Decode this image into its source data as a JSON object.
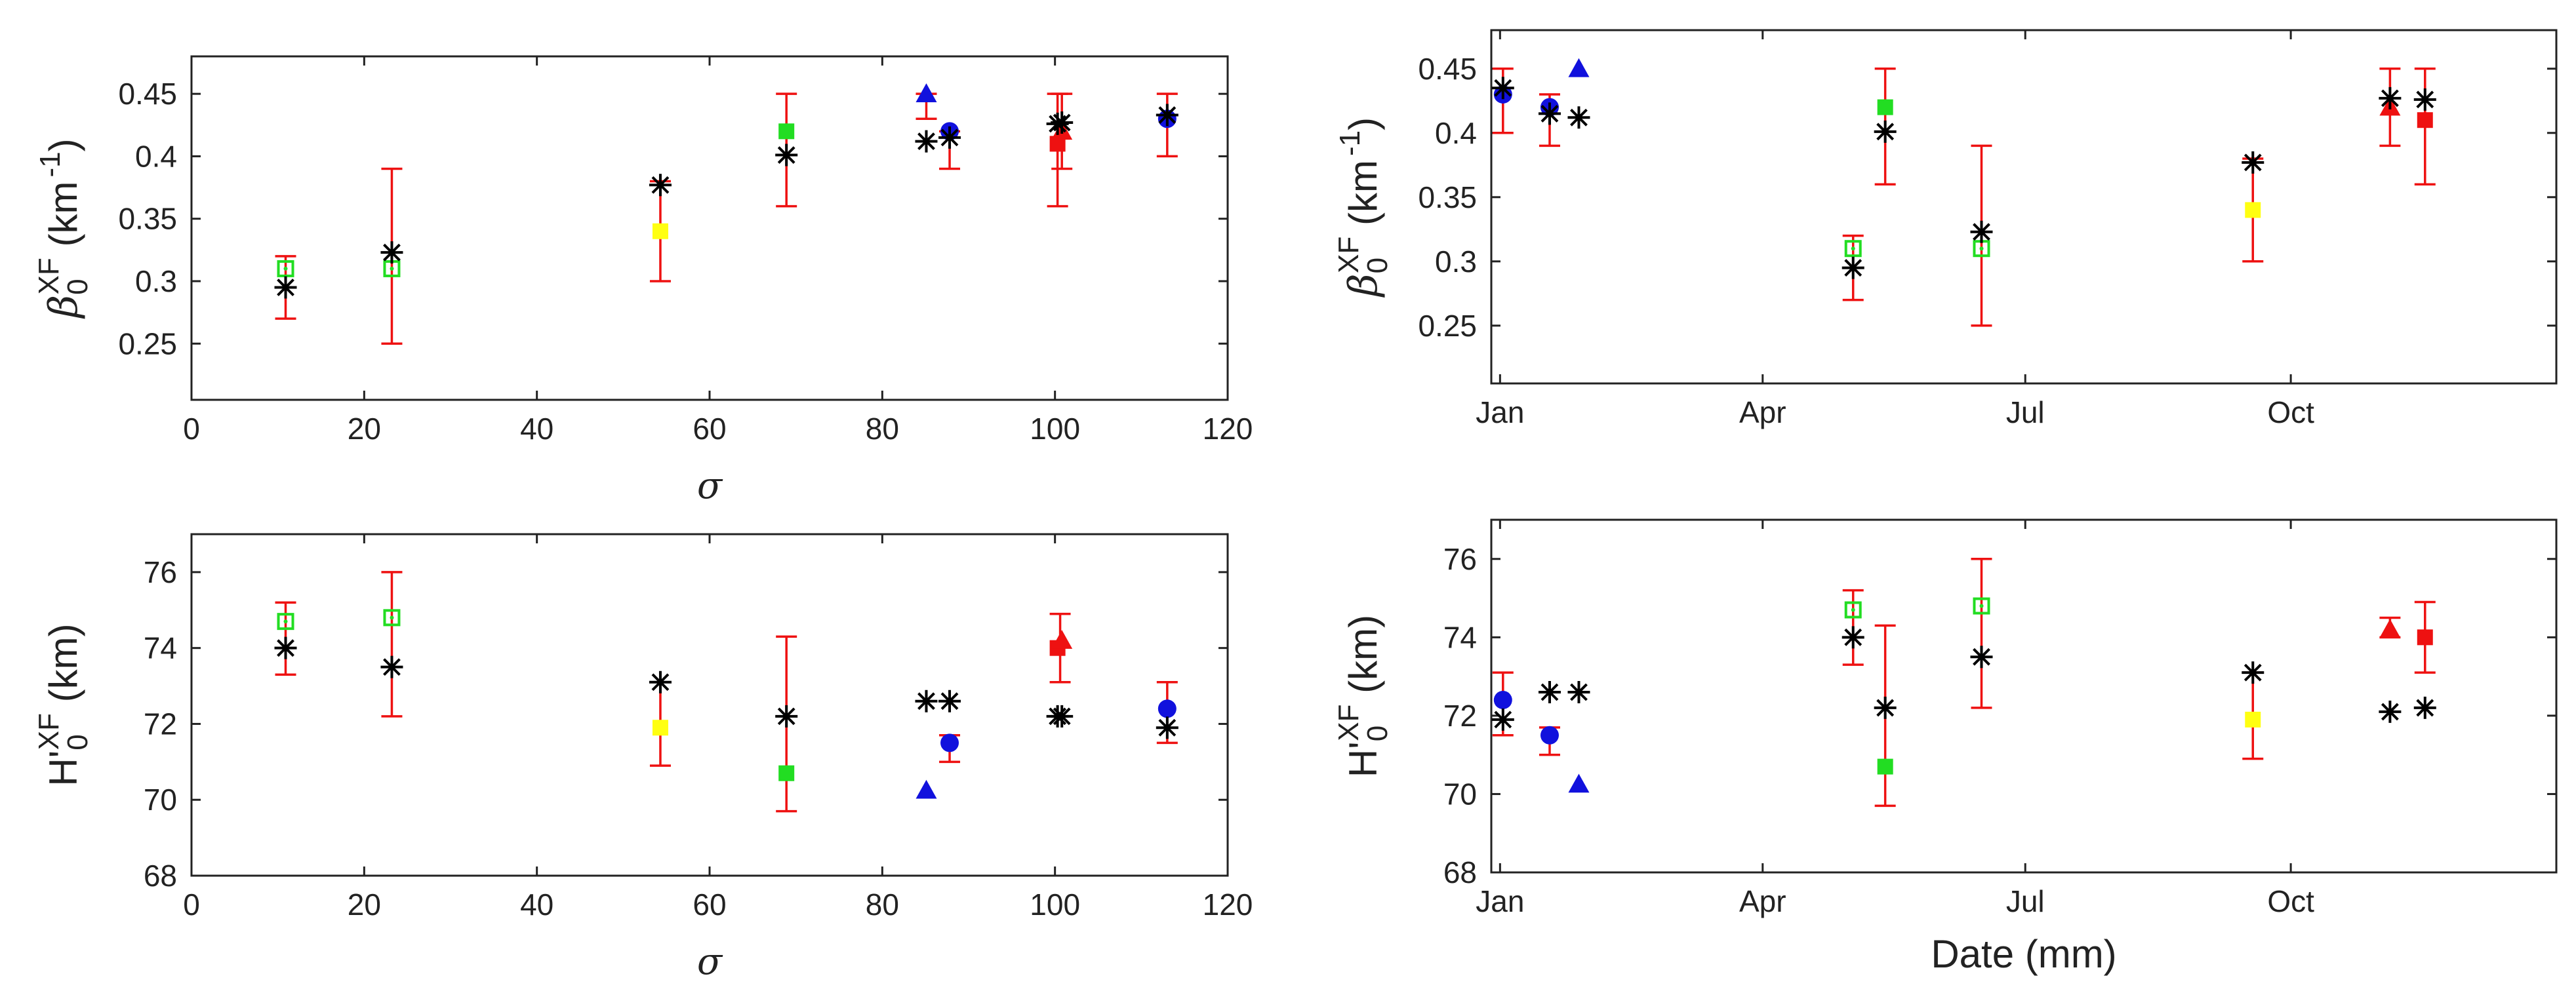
{
  "colors": {
    "red": "#ee1111",
    "green": "#22dd22",
    "yellow": "#ffff11",
    "blue": "#1111dd",
    "black": "#000000"
  },
  "chart_data": [
    {
      "type": "scatter",
      "xlabel": "σ",
      "ylabel": {
        "main": "β",
        "sub": "0",
        "sup": "XF",
        "unit": "(km",
        "unit_sup": "-1",
        "unit_close": ")"
      },
      "xlim": [
        0,
        120
      ],
      "ylim": [
        0.205,
        0.48
      ],
      "xticks": [
        0,
        20,
        40,
        60,
        80,
        100,
        120
      ],
      "yticks": [
        0.25,
        0.3,
        0.35,
        0.4,
        0.45
      ],
      "errorbars": [
        {
          "x": 10.9,
          "y": 0.31,
          "lo": 0.27,
          "hi": 0.32
        },
        {
          "x": 23.2,
          "y": 0.31,
          "lo": 0.25,
          "hi": 0.39
        },
        {
          "x": 54.3,
          "y": 0.34,
          "lo": 0.3,
          "hi": 0.38
        },
        {
          "x": 68.9,
          "y": 0.42,
          "lo": 0.36,
          "hi": 0.45
        },
        {
          "x": 85.1,
          "y": 0.45,
          "lo": 0.43,
          "hi": 0.45
        },
        {
          "x": 87.8,
          "y": 0.42,
          "lo": 0.39,
          "hi": 0.42
        },
        {
          "x": 100.3,
          "y": 0.41,
          "lo": 0.36,
          "hi": 0.45
        },
        {
          "x": 100.8,
          "y": 0.42,
          "lo": 0.39,
          "hi": 0.45
        },
        {
          "x": 113.0,
          "y": 0.43,
          "lo": 0.4,
          "hi": 0.45
        }
      ],
      "markers": [
        {
          "x": 10.9,
          "y": 0.31,
          "shape": "square-open",
          "color": "green"
        },
        {
          "x": 23.2,
          "y": 0.31,
          "shape": "square-open",
          "color": "green"
        },
        {
          "x": 54.3,
          "y": 0.34,
          "shape": "square",
          "color": "yellow"
        },
        {
          "x": 68.9,
          "y": 0.42,
          "shape": "square",
          "color": "green"
        },
        {
          "x": 85.1,
          "y": 0.45,
          "shape": "triangle",
          "color": "blue"
        },
        {
          "x": 87.8,
          "y": 0.42,
          "shape": "circle",
          "color": "blue"
        },
        {
          "x": 100.3,
          "y": 0.41,
          "shape": "square",
          "color": "red"
        },
        {
          "x": 100.8,
          "y": 0.42,
          "shape": "triangle",
          "color": "red"
        },
        {
          "x": 113.0,
          "y": 0.43,
          "shape": "circle",
          "color": "blue"
        },
        {
          "x": 10.9,
          "y": 0.295,
          "shape": "asterisk",
          "color": "black"
        },
        {
          "x": 23.2,
          "y": 0.323,
          "shape": "asterisk",
          "color": "black"
        },
        {
          "x": 54.3,
          "y": 0.377,
          "shape": "asterisk",
          "color": "black"
        },
        {
          "x": 68.9,
          "y": 0.401,
          "shape": "asterisk",
          "color": "black"
        },
        {
          "x": 85.1,
          "y": 0.412,
          "shape": "asterisk",
          "color": "black"
        },
        {
          "x": 87.8,
          "y": 0.415,
          "shape": "asterisk",
          "color": "black"
        },
        {
          "x": 100.3,
          "y": 0.426,
          "shape": "asterisk",
          "color": "black"
        },
        {
          "x": 100.8,
          "y": 0.427,
          "shape": "asterisk",
          "color": "black"
        },
        {
          "x": 113.0,
          "y": 0.433,
          "shape": "asterisk",
          "color": "black"
        }
      ]
    },
    {
      "type": "scatter",
      "xlabel": "",
      "ylabel": {
        "main": "β",
        "sub": "0",
        "sup": "XF",
        "unit": "(km",
        "unit_sup": "-1",
        "unit_close": ")"
      },
      "xlim": [
        0,
        365
      ],
      "ylim": [
        0.205,
        0.48
      ],
      "xticks": [
        3,
        93,
        183,
        274
      ],
      "xticklabels": [
        "Jan",
        "Apr",
        "Jul",
        "Oct"
      ],
      "yticks": [
        0.25,
        0.3,
        0.35,
        0.4,
        0.45
      ],
      "errorbars": [
        {
          "x": 4,
          "y": 0.43,
          "lo": 0.4,
          "hi": 0.45
        },
        {
          "x": 20,
          "y": 0.42,
          "lo": 0.39,
          "hi": 0.43
        },
        {
          "x": 124,
          "y": 0.31,
          "lo": 0.27,
          "hi": 0.32
        },
        {
          "x": 135,
          "y": 0.42,
          "lo": 0.36,
          "hi": 0.45
        },
        {
          "x": 168,
          "y": 0.31,
          "lo": 0.25,
          "hi": 0.39
        },
        {
          "x": 261,
          "y": 0.34,
          "lo": 0.3,
          "hi": 0.38
        },
        {
          "x": 308,
          "y": 0.42,
          "lo": 0.39,
          "hi": 0.45
        },
        {
          "x": 320,
          "y": 0.41,
          "lo": 0.36,
          "hi": 0.45
        }
      ],
      "markers": [
        {
          "x": 4,
          "y": 0.43,
          "shape": "circle",
          "color": "blue"
        },
        {
          "x": 20,
          "y": 0.42,
          "shape": "circle",
          "color": "blue"
        },
        {
          "x": 30,
          "y": 0.45,
          "shape": "triangle",
          "color": "blue"
        },
        {
          "x": 124,
          "y": 0.31,
          "shape": "square-open",
          "color": "green"
        },
        {
          "x": 135,
          "y": 0.42,
          "shape": "square",
          "color": "green"
        },
        {
          "x": 168,
          "y": 0.31,
          "shape": "square-open",
          "color": "green"
        },
        {
          "x": 261,
          "y": 0.34,
          "shape": "square",
          "color": "yellow"
        },
        {
          "x": 308,
          "y": 0.42,
          "shape": "triangle",
          "color": "red"
        },
        {
          "x": 320,
          "y": 0.41,
          "shape": "square",
          "color": "red"
        },
        {
          "x": 4,
          "y": 0.435,
          "shape": "asterisk",
          "color": "black"
        },
        {
          "x": 20,
          "y": 0.415,
          "shape": "asterisk",
          "color": "black"
        },
        {
          "x": 30,
          "y": 0.412,
          "shape": "asterisk",
          "color": "black"
        },
        {
          "x": 124,
          "y": 0.295,
          "shape": "asterisk",
          "color": "black"
        },
        {
          "x": 135,
          "y": 0.401,
          "shape": "asterisk",
          "color": "black"
        },
        {
          "x": 168,
          "y": 0.323,
          "shape": "asterisk",
          "color": "black"
        },
        {
          "x": 261,
          "y": 0.377,
          "shape": "asterisk",
          "color": "black"
        },
        {
          "x": 308,
          "y": 0.427,
          "shape": "asterisk",
          "color": "black"
        },
        {
          "x": 320,
          "y": 0.426,
          "shape": "asterisk",
          "color": "black"
        }
      ]
    },
    {
      "type": "scatter",
      "xlabel": "σ",
      "ylabel": {
        "main": "H'",
        "sub": "0",
        "sup": "XF",
        "unit": "(km)"
      },
      "xlim": [
        0,
        120
      ],
      "ylim": [
        68,
        77
      ],
      "xticks": [
        0,
        20,
        40,
        60,
        80,
        100,
        120
      ],
      "yticks": [
        68,
        70,
        72,
        74,
        76
      ],
      "errorbars": [
        {
          "x": 10.9,
          "y": 74.7,
          "lo": 73.3,
          "hi": 75.2
        },
        {
          "x": 23.2,
          "y": 74.8,
          "lo": 72.2,
          "hi": 76.0
        },
        {
          "x": 54.3,
          "y": 71.9,
          "lo": 70.9,
          "hi": 73.1
        },
        {
          "x": 68.9,
          "y": 70.7,
          "lo": 69.7,
          "hi": 74.3
        },
        {
          "x": 87.8,
          "y": 71.5,
          "lo": 71.0,
          "hi": 71.7
        },
        {
          "x": 100.6,
          "y": 74.1,
          "lo": 73.1,
          "hi": 74.9
        },
        {
          "x": 113.0,
          "y": 72.4,
          "lo": 71.5,
          "hi": 73.1
        }
      ],
      "markers": [
        {
          "x": 10.9,
          "y": 74.7,
          "shape": "square-open",
          "color": "green"
        },
        {
          "x": 23.2,
          "y": 74.8,
          "shape": "square-open",
          "color": "green"
        },
        {
          "x": 54.3,
          "y": 71.9,
          "shape": "square",
          "color": "yellow"
        },
        {
          "x": 68.9,
          "y": 70.7,
          "shape": "square",
          "color": "green"
        },
        {
          "x": 85.1,
          "y": 70.25,
          "shape": "triangle",
          "color": "blue"
        },
        {
          "x": 87.8,
          "y": 71.5,
          "shape": "circle",
          "color": "blue"
        },
        {
          "x": 100.3,
          "y": 74.0,
          "shape": "square",
          "color": "red"
        },
        {
          "x": 100.8,
          "y": 74.2,
          "shape": "triangle",
          "color": "red"
        },
        {
          "x": 113.0,
          "y": 72.4,
          "shape": "circle",
          "color": "blue"
        },
        {
          "x": 10.9,
          "y": 74.0,
          "shape": "asterisk",
          "color": "black"
        },
        {
          "x": 23.2,
          "y": 73.5,
          "shape": "asterisk",
          "color": "black"
        },
        {
          "x": 54.3,
          "y": 73.1,
          "shape": "asterisk",
          "color": "black"
        },
        {
          "x": 68.9,
          "y": 72.2,
          "shape": "asterisk",
          "color": "black"
        },
        {
          "x": 85.1,
          "y": 72.6,
          "shape": "asterisk",
          "color": "black"
        },
        {
          "x": 87.8,
          "y": 72.6,
          "shape": "asterisk",
          "color": "black"
        },
        {
          "x": 100.3,
          "y": 72.2,
          "shape": "asterisk",
          "color": "black"
        },
        {
          "x": 100.8,
          "y": 72.2,
          "shape": "asterisk",
          "color": "black"
        },
        {
          "x": 113.0,
          "y": 71.9,
          "shape": "asterisk",
          "color": "black"
        }
      ]
    },
    {
      "type": "scatter",
      "xlabel": "Date (mm)",
      "ylabel": {
        "main": "H'",
        "sub": "0",
        "sup": "XF",
        "unit": "(km)"
      },
      "xlim": [
        0,
        365
      ],
      "ylim": [
        68,
        77
      ],
      "xticks": [
        3,
        93,
        183,
        274
      ],
      "xticklabels": [
        "Jan",
        "Apr",
        "Jul",
        "Oct"
      ],
      "yticks": [
        68,
        70,
        72,
        74,
        76
      ],
      "errorbars": [
        {
          "x": 4,
          "y": 72.4,
          "lo": 71.5,
          "hi": 73.1
        },
        {
          "x": 20,
          "y": 71.5,
          "lo": 71.0,
          "hi": 71.7
        },
        {
          "x": 124,
          "y": 74.7,
          "lo": 73.3,
          "hi": 75.2
        },
        {
          "x": 135,
          "y": 70.7,
          "lo": 69.7,
          "hi": 74.3
        },
        {
          "x": 168,
          "y": 74.8,
          "lo": 72.2,
          "hi": 76.0
        },
        {
          "x": 261,
          "y": 71.9,
          "lo": 70.9,
          "hi": 73.1
        },
        {
          "x": 308,
          "y": 74.2,
          "lo": 74.0,
          "hi": 74.5
        },
        {
          "x": 320,
          "y": 74.0,
          "lo": 73.1,
          "hi": 74.9
        }
      ],
      "markers": [
        {
          "x": 4,
          "y": 72.4,
          "shape": "circle",
          "color": "blue"
        },
        {
          "x": 20,
          "y": 71.5,
          "shape": "circle",
          "color": "blue"
        },
        {
          "x": 30,
          "y": 70.25,
          "shape": "triangle",
          "color": "blue"
        },
        {
          "x": 124,
          "y": 74.7,
          "shape": "square-open",
          "color": "green"
        },
        {
          "x": 135,
          "y": 70.7,
          "shape": "square",
          "color": "green"
        },
        {
          "x": 168,
          "y": 74.8,
          "shape": "square-open",
          "color": "green"
        },
        {
          "x": 261,
          "y": 71.9,
          "shape": "square",
          "color": "yellow"
        },
        {
          "x": 308,
          "y": 74.2,
          "shape": "triangle",
          "color": "red"
        },
        {
          "x": 320,
          "y": 74.0,
          "shape": "square",
          "color": "red"
        },
        {
          "x": 4,
          "y": 71.9,
          "shape": "asterisk",
          "color": "black"
        },
        {
          "x": 20,
          "y": 72.6,
          "shape": "asterisk",
          "color": "black"
        },
        {
          "x": 30,
          "y": 72.6,
          "shape": "asterisk",
          "color": "black"
        },
        {
          "x": 124,
          "y": 74.0,
          "shape": "asterisk",
          "color": "black"
        },
        {
          "x": 135,
          "y": 72.2,
          "shape": "asterisk",
          "color": "black"
        },
        {
          "x": 168,
          "y": 73.5,
          "shape": "asterisk",
          "color": "black"
        },
        {
          "x": 261,
          "y": 73.1,
          "shape": "asterisk",
          "color": "black"
        },
        {
          "x": 308,
          "y": 72.1,
          "shape": "asterisk",
          "color": "black"
        },
        {
          "x": 320,
          "y": 72.2,
          "shape": "asterisk",
          "color": "black"
        }
      ]
    }
  ]
}
